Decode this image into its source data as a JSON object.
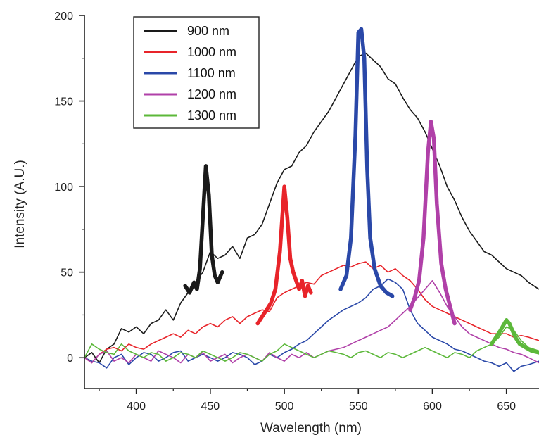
{
  "chart_data": {
    "type": "line",
    "title": "",
    "xlabel": "Wavelength (nm)",
    "ylabel": "Intensity (A.U.)",
    "xlim": [
      365,
      672
    ],
    "ylim": [
      -18,
      200
    ],
    "xticks": [
      400,
      450,
      500,
      550,
      600,
      650
    ],
    "yticks": [
      0,
      50,
      100,
      150,
      200
    ],
    "grid": false,
    "legend_position": "top-left",
    "series": [
      {
        "name": "900 nm",
        "color": "#1a1a1a",
        "x": [
          365,
          370,
          375,
          380,
          385,
          390,
          395,
          400,
          405,
          410,
          415,
          420,
          425,
          430,
          435,
          440,
          445,
          450,
          455,
          460,
          465,
          470,
          475,
          480,
          485,
          490,
          495,
          500,
          505,
          510,
          515,
          520,
          525,
          530,
          535,
          540,
          545,
          550,
          555,
          560,
          565,
          570,
          575,
          580,
          585,
          590,
          595,
          600,
          605,
          610,
          615,
          620,
          625,
          630,
          635,
          640,
          645,
          650,
          655,
          660,
          665,
          672
        ],
        "y": [
          0,
          3,
          -3,
          5,
          8,
          17,
          15,
          18,
          14,
          20,
          22,
          28,
          22,
          32,
          38,
          44,
          50,
          62,
          58,
          60,
          65,
          58,
          70,
          72,
          78,
          90,
          102,
          110,
          112,
          120,
          124,
          132,
          138,
          144,
          152,
          160,
          168,
          176,
          178,
          174,
          170,
          163,
          160,
          152,
          145,
          140,
          132,
          122,
          112,
          100,
          92,
          82,
          74,
          68,
          62,
          60,
          56,
          52,
          50,
          48,
          44,
          40
        ],
        "highlight": {
          "x": [
            433,
            436,
            439,
            441,
            443,
            445,
            447,
            449,
            451,
            453,
            455,
            458
          ],
          "y": [
            42,
            38,
            44,
            40,
            52,
            82,
            112,
            95,
            60,
            48,
            44,
            50
          ]
        }
      },
      {
        "name": "1000 nm",
        "color": "#e8242a",
        "x": [
          365,
          370,
          375,
          380,
          385,
          390,
          395,
          400,
          405,
          410,
          415,
          420,
          425,
          430,
          435,
          440,
          445,
          450,
          455,
          460,
          465,
          470,
          475,
          480,
          485,
          490,
          495,
          500,
          505,
          510,
          515,
          520,
          525,
          530,
          535,
          540,
          545,
          550,
          555,
          560,
          565,
          570,
          575,
          580,
          585,
          590,
          595,
          600,
          605,
          610,
          615,
          620,
          625,
          630,
          635,
          640,
          645,
          650,
          655,
          660,
          665,
          672
        ],
        "y": [
          0,
          -3,
          2,
          5,
          6,
          4,
          8,
          6,
          5,
          8,
          10,
          12,
          14,
          12,
          16,
          14,
          18,
          20,
          18,
          22,
          24,
          20,
          24,
          26,
          28,
          27,
          35,
          38,
          40,
          42,
          44,
          43,
          48,
          50,
          52,
          54,
          53,
          55,
          56,
          52,
          54,
          50,
          52,
          48,
          45,
          40,
          34,
          30,
          28,
          26,
          24,
          22,
          20,
          18,
          16,
          14,
          14,
          14,
          12,
          13,
          12,
          10
        ],
        "highlight": {
          "x": [
            482,
            485,
            488,
            491,
            494,
            497,
            500,
            502,
            504,
            506,
            508,
            510,
            512,
            514,
            516,
            518
          ],
          "y": [
            20,
            24,
            28,
            32,
            40,
            62,
            100,
            82,
            58,
            50,
            45,
            40,
            45,
            36,
            42,
            38
          ]
        }
      },
      {
        "name": "1100 nm",
        "color": "#2a48a8",
        "x": [
          365,
          370,
          375,
          380,
          385,
          390,
          395,
          400,
          405,
          410,
          415,
          420,
          425,
          430,
          435,
          440,
          445,
          450,
          455,
          460,
          465,
          470,
          475,
          480,
          485,
          490,
          495,
          500,
          505,
          510,
          515,
          520,
          525,
          530,
          535,
          540,
          545,
          550,
          555,
          560,
          565,
          570,
          575,
          580,
          585,
          590,
          595,
          600,
          605,
          610,
          615,
          620,
          625,
          630,
          635,
          640,
          645,
          650,
          655,
          660,
          665,
          672
        ],
        "y": [
          0,
          -2,
          -3,
          -6,
          0,
          2,
          -4,
          0,
          3,
          2,
          -2,
          0,
          3,
          4,
          -2,
          0,
          2,
          0,
          -2,
          0,
          3,
          2,
          0,
          -4,
          -2,
          2,
          0,
          3,
          5,
          8,
          10,
          14,
          18,
          22,
          25,
          28,
          30,
          32,
          35,
          40,
          42,
          46,
          44,
          40,
          28,
          20,
          16,
          12,
          10,
          8,
          5,
          4,
          2,
          0,
          -2,
          -3,
          -5,
          -3,
          -8,
          -5,
          -4,
          -2
        ],
        "highlight": {
          "x": [
            538,
            542,
            545,
            548,
            550,
            552,
            554,
            556,
            558,
            561,
            565,
            569,
            573
          ],
          "y": [
            40,
            48,
            70,
            130,
            190,
            192,
            175,
            110,
            70,
            52,
            42,
            38,
            36
          ]
        }
      },
      {
        "name": "1200 nm",
        "color": "#b040a8",
        "x": [
          365,
          370,
          375,
          380,
          385,
          390,
          395,
          400,
          405,
          410,
          415,
          420,
          425,
          430,
          435,
          440,
          445,
          450,
          455,
          460,
          465,
          470,
          475,
          480,
          485,
          490,
          495,
          500,
          505,
          510,
          515,
          520,
          525,
          530,
          535,
          540,
          545,
          550,
          555,
          560,
          565,
          570,
          575,
          580,
          585,
          590,
          595,
          600,
          605,
          610,
          615,
          620,
          625,
          630,
          635,
          640,
          645,
          650,
          655,
          660,
          665,
          672
        ],
        "y": [
          0,
          -3,
          2,
          4,
          -2,
          0,
          -3,
          2,
          0,
          -2,
          4,
          2,
          0,
          -3,
          2,
          0,
          3,
          -2,
          0,
          2,
          -3,
          0,
          2,
          0,
          -2,
          3,
          0,
          -2,
          2,
          0,
          3,
          0,
          2,
          4,
          5,
          6,
          8,
          10,
          12,
          14,
          16,
          18,
          22,
          26,
          30,
          35,
          40,
          45,
          38,
          30,
          24,
          18,
          14,
          12,
          10,
          8,
          6,
          5,
          3,
          2,
          0,
          -3
        ],
        "highlight": {
          "x": [
            585,
            588,
            591,
            594,
            597,
            599,
            601,
            603,
            606,
            609,
            612,
            615
          ],
          "y": [
            28,
            35,
            45,
            70,
            120,
            138,
            128,
            90,
            55,
            40,
            30,
            20
          ]
        }
      },
      {
        "name": "1300 nm",
        "color": "#5cb83a",
        "x": [
          365,
          370,
          375,
          380,
          385,
          390,
          395,
          400,
          405,
          410,
          415,
          420,
          425,
          430,
          435,
          440,
          445,
          450,
          455,
          460,
          465,
          470,
          475,
          480,
          485,
          490,
          495,
          500,
          505,
          510,
          515,
          520,
          525,
          530,
          535,
          540,
          545,
          550,
          555,
          560,
          565,
          570,
          575,
          580,
          585,
          590,
          595,
          600,
          605,
          610,
          615,
          620,
          625,
          630,
          635,
          640,
          645,
          650,
          655,
          660,
          665,
          672
        ],
        "y": [
          0,
          8,
          5,
          3,
          2,
          8,
          4,
          2,
          0,
          3,
          2,
          -2,
          0,
          3,
          2,
          0,
          4,
          2,
          0,
          -2,
          0,
          3,
          2,
          0,
          -2,
          2,
          4,
          8,
          6,
          4,
          2,
          0,
          2,
          4,
          3,
          2,
          0,
          3,
          4,
          2,
          0,
          3,
          2,
          0,
          2,
          4,
          6,
          4,
          2,
          0,
          3,
          2,
          0,
          4,
          6,
          8,
          12,
          18,
          16,
          10,
          6,
          4
        ],
        "highlight": {
          "x": [
            640,
            643,
            646,
            648,
            650,
            652,
            654,
            656,
            659,
            663,
            667,
            672
          ],
          "y": [
            8,
            12,
            16,
            19,
            22,
            20,
            16,
            12,
            8,
            6,
            4,
            3
          ]
        }
      }
    ]
  }
}
